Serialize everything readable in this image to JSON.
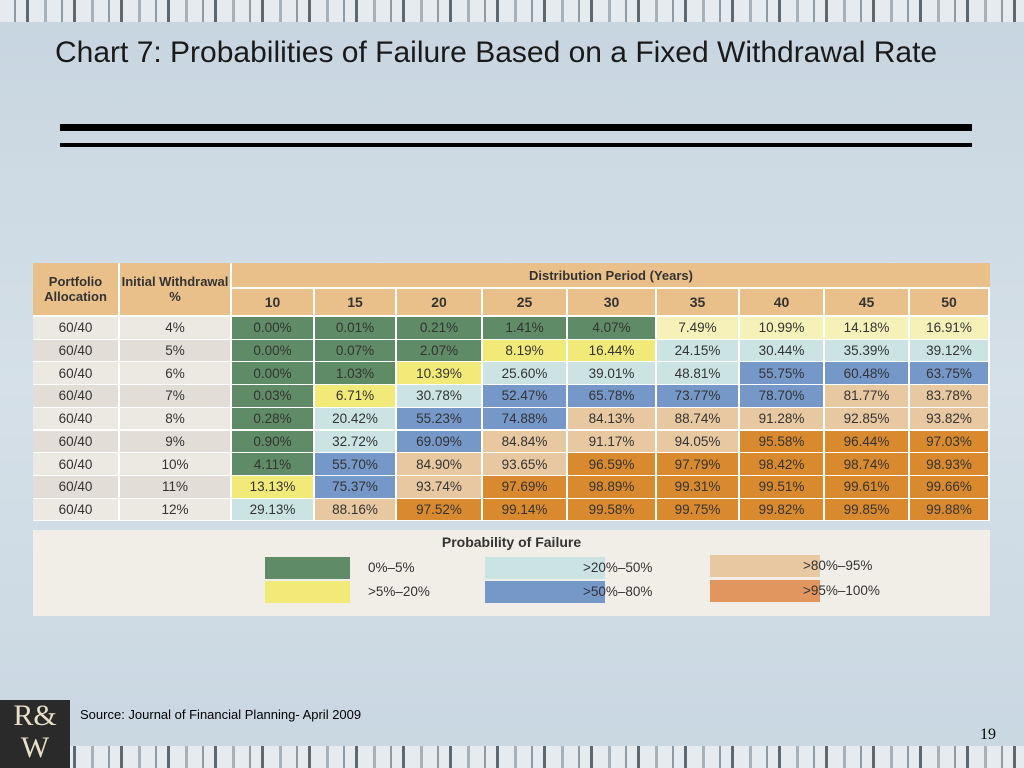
{
  "title": "Chart 7: Probabilities of Failure Based on a Fixed Withdrawal Rate",
  "table": {
    "headers": {
      "allocation": "Portfolio Allocation",
      "rate": "Initial Withdrawal %",
      "period": "Distribution Period (Years)",
      "periods": [
        "10",
        "15",
        "20",
        "25",
        "30",
        "35",
        "40",
        "45",
        "50"
      ]
    },
    "rows": [
      {
        "allocation": "60/40",
        "rate": "4%",
        "values": [
          "0.00%",
          "0.01%",
          "0.21%",
          "1.41%",
          "4.07%",
          "7.49%",
          "10.99%",
          "14.18%",
          "16.91%"
        ],
        "colors": [
          "#5f8b66",
          "#5f8b66",
          "#5f8b66",
          "#5f8b66",
          "#5f8b66",
          "#f6f1b8",
          "#f6f1b8",
          "#f6f1b8",
          "#f6f1b8"
        ]
      },
      {
        "allocation": "60/40",
        "rate": "5%",
        "values": [
          "0.00%",
          "0.07%",
          "2.07%",
          "8.19%",
          "16.44%",
          "24.15%",
          "30.44%",
          "35.39%",
          "39.12%"
        ],
        "colors": [
          "#5f8b66",
          "#5f8b66",
          "#5f8b66",
          "#f2ea78",
          "#f2ea78",
          "#cbe3e2",
          "#cbe3e2",
          "#cbe3e2",
          "#cbe3e2"
        ]
      },
      {
        "allocation": "60/40",
        "rate": "6%",
        "values": [
          "0.00%",
          "1.03%",
          "10.39%",
          "25.60%",
          "39.01%",
          "48.81%",
          "55.75%",
          "60.48%",
          "63.75%"
        ],
        "colors": [
          "#5f8b66",
          "#5f8b66",
          "#f2ea78",
          "#cbe3e2",
          "#cbe3e2",
          "#cbe3e2",
          "#7598c9",
          "#7598c9",
          "#7598c9"
        ]
      },
      {
        "allocation": "60/40",
        "rate": "7%",
        "values": [
          "0.03%",
          "6.71%",
          "30.78%",
          "52.47%",
          "65.78%",
          "73.77%",
          "78.70%",
          "81.77%",
          "83.78%"
        ],
        "colors": [
          "#5f8b66",
          "#f2ea78",
          "#cbe3e2",
          "#7598c9",
          "#7598c9",
          "#7598c9",
          "#7598c9",
          "#e7c8a0",
          "#e7c8a0"
        ]
      },
      {
        "allocation": "60/40",
        "rate": "8%",
        "values": [
          "0.28%",
          "20.42%",
          "55.23%",
          "74.88%",
          "84.13%",
          "88.74%",
          "91.28%",
          "92.85%",
          "93.82%"
        ],
        "colors": [
          "#5f8b66",
          "#cbe3e2",
          "#7598c9",
          "#7598c9",
          "#e7c8a0",
          "#e7c8a0",
          "#e7c8a0",
          "#e7c8a0",
          "#e7c8a0"
        ]
      },
      {
        "allocation": "60/40",
        "rate": "9%",
        "values": [
          "0.90%",
          "32.72%",
          "69.09%",
          "84.84%",
          "91.17%",
          "94.05%",
          "95.58%",
          "96.44%",
          "97.03%"
        ],
        "colors": [
          "#5f8b66",
          "#cbe3e2",
          "#7598c9",
          "#e7c8a0",
          "#e7c8a0",
          "#e7c8a0",
          "#da8a2e",
          "#da8a2e",
          "#da8a2e"
        ]
      },
      {
        "allocation": "60/40",
        "rate": "10%",
        "values": [
          "4.11%",
          "55.70%",
          "84.90%",
          "93.65%",
          "96.59%",
          "97.79%",
          "98.42%",
          "98.74%",
          "98.93%"
        ],
        "colors": [
          "#5f8b66",
          "#7598c9",
          "#e7c8a0",
          "#e7c8a0",
          "#da8a2e",
          "#da8a2e",
          "#da8a2e",
          "#da8a2e",
          "#da8a2e"
        ]
      },
      {
        "allocation": "60/40",
        "rate": "11%",
        "values": [
          "13.13%",
          "75.37%",
          "93.74%",
          "97.69%",
          "98.89%",
          "99.31%",
          "99.51%",
          "99.61%",
          "99.66%"
        ],
        "colors": [
          "#f2ea78",
          "#7598c9",
          "#e7c8a0",
          "#da8a2e",
          "#da8a2e",
          "#da8a2e",
          "#da8a2e",
          "#da8a2e",
          "#da8a2e"
        ]
      },
      {
        "allocation": "60/40",
        "rate": "12%",
        "values": [
          "29.13%",
          "88.16%",
          "97.52%",
          "99.14%",
          "99.58%",
          "99.75%",
          "99.82%",
          "99.85%",
          "99.88%"
        ],
        "colors": [
          "#cbe3e2",
          "#e7c8a0",
          "#da8a2e",
          "#da8a2e",
          "#da8a2e",
          "#da8a2e",
          "#da8a2e",
          "#da8a2e",
          "#da8a2e"
        ]
      }
    ]
  },
  "legend": {
    "title": "Probability of Failure",
    "items": [
      {
        "label": "0%–5%",
        "color": "#5f8b66"
      },
      {
        "label": ">5%–20%",
        "color": "#f2ea78"
      },
      {
        "label": ">20%–50%",
        "color": "#cbe3e2"
      },
      {
        "label": ">50%–80%",
        "color": "#7598c9"
      },
      {
        "label": ">80%–95%",
        "color": "#e7c8a0"
      },
      {
        "label": ">95%–100%",
        "color": "#e0965e"
      }
    ]
  },
  "source": "Source:  Journal of Financial Planning- April 2009",
  "page_number": "19"
}
